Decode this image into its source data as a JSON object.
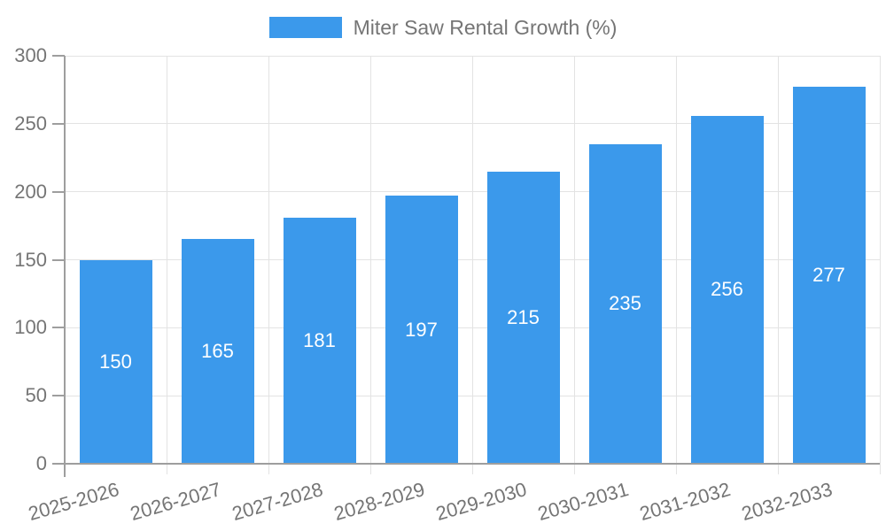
{
  "legend": {
    "label": "Miter Saw Rental Growth (%)"
  },
  "chart_data": {
    "type": "bar",
    "title": "Miter Saw Rental Growth (%)",
    "categories": [
      "2025-2026",
      "2026-2027",
      "2027-2028",
      "2028-2029",
      "2029-2030",
      "2030-2031",
      "2031-2032",
      "2032-2033"
    ],
    "values": [
      150,
      165,
      181,
      197,
      215,
      235,
      256,
      277
    ],
    "xlabel": "",
    "ylabel": "",
    "ylim": [
      0,
      300
    ],
    "yticks": [
      0,
      50,
      100,
      150,
      200,
      250,
      300
    ],
    "grid": true,
    "legend_position": "top-center",
    "value_labels": "inside-center",
    "x_label_rotation_deg": -16,
    "colors": {
      "bar": "#3B99EB",
      "value_label": "#FFFFFF",
      "axis_text": "#757575",
      "gridline": "#E3E3E3",
      "axis_line": "#9E9E9E"
    }
  }
}
